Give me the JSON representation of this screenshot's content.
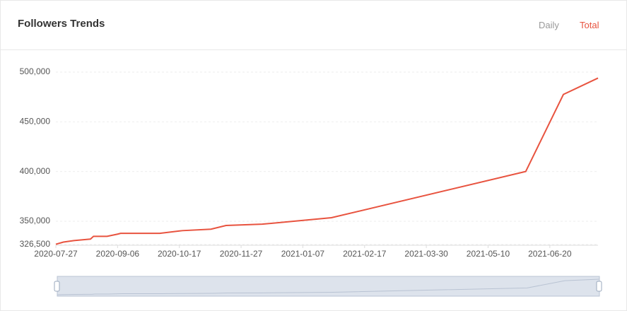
{
  "header": {
    "title": "Followers Trends",
    "tabs": [
      "Daily",
      "Total"
    ]
  },
  "chart_data": {
    "type": "line",
    "x": [
      "2020-07-27",
      "2020-08-01",
      "2020-08-08",
      "2020-08-19",
      "2020-08-21",
      "2020-08-30",
      "2020-09-06",
      "2020-09-08",
      "2020-10-04",
      "2020-10-19",
      "2020-11-07",
      "2020-11-17",
      "2020-12-11",
      "2021-01-26",
      "2021-06-04",
      "2021-06-29",
      "2021-07-22"
    ],
    "series": [
      {
        "name": "Total",
        "color": "#e8533f",
        "values": [
          326800,
          329000,
          330500,
          332000,
          334800,
          334800,
          337000,
          337800,
          337800,
          340500,
          342000,
          345700,
          347000,
          353500,
          400000,
          477500,
          494000
        ]
      }
    ],
    "xlim": [
      "2020-07-27",
      "2021-07-22"
    ],
    "xticks": [
      "2020-07-27",
      "2020-09-06",
      "2020-10-17",
      "2020-11-27",
      "2021-01-07",
      "2021-02-17",
      "2021-03-30",
      "2021-05-10",
      "2021-06-20"
    ],
    "ylim": [
      326500,
      500000
    ],
    "yticks": [
      {
        "value": 326500,
        "label": "326,500"
      },
      {
        "value": 350000,
        "label": "350,000"
      },
      {
        "value": 400000,
        "label": "400,000"
      },
      {
        "value": 450000,
        "label": "450,000"
      },
      {
        "value": 500000,
        "label": "500,000"
      }
    ],
    "grid": true
  }
}
